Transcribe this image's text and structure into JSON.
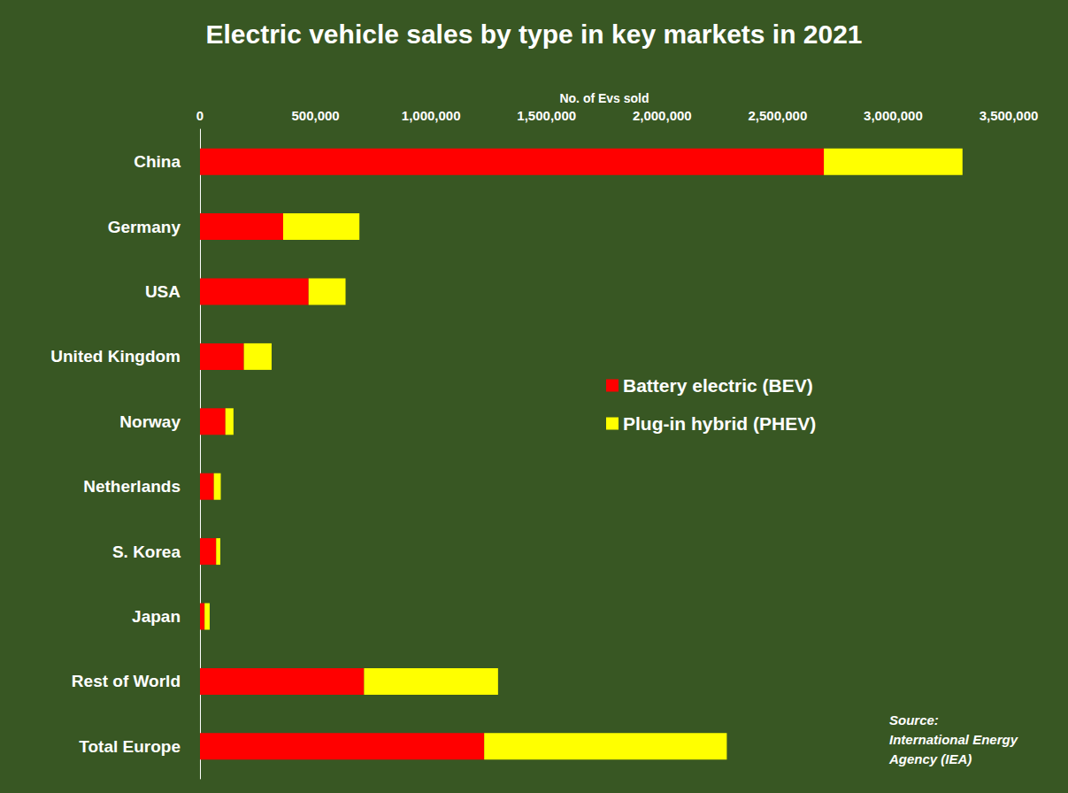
{
  "chart_data": {
    "type": "bar",
    "title": "Electric vehicle sales by type in key markets in 2021",
    "x_label": "No. of Evs sold",
    "orientation": "horizontal",
    "stacked": true,
    "grid": false,
    "legend": "right",
    "categories": [
      "China",
      "Germany",
      "USA",
      "United Kingdom",
      "Norway",
      "Netherlands",
      "S. Korea",
      "Japan",
      "Rest of World",
      "Total Europe"
    ],
    "series": [
      {
        "name": "Battery electric (BEV)",
        "color": "#ff0000",
        "values": [
          2700000,
          360000,
          470000,
          190000,
          110000,
          60000,
          70000,
          20000,
          710000,
          1230000
        ]
      },
      {
        "name": "Plug-in hybrid (PHEV)",
        "color": "#ffff00",
        "values": [
          600000,
          330000,
          160000,
          120000,
          35000,
          30000,
          18000,
          22000,
          580000,
          1050000
        ]
      }
    ],
    "xlim": [
      0,
      3500000
    ],
    "xticks": [
      0,
      {
        "value": 500000,
        "label": "500,000"
      },
      {
        "value": 1000000,
        "label": "1,000,000"
      },
      {
        "value": 1500000,
        "label": "1,500,000"
      },
      {
        "value": 2000000,
        "label": "2,000,000"
      },
      {
        "value": 2500000,
        "label": "2,500,000"
      },
      {
        "value": 3000000,
        "label": "3,000,000"
      },
      {
        "value": 3500000,
        "label": "3,500,000"
      }
    ],
    "annotations": [
      {
        "text": [
          "Source:",
          "International Energy",
          "Agency (IEA)"
        ]
      }
    ]
  }
}
